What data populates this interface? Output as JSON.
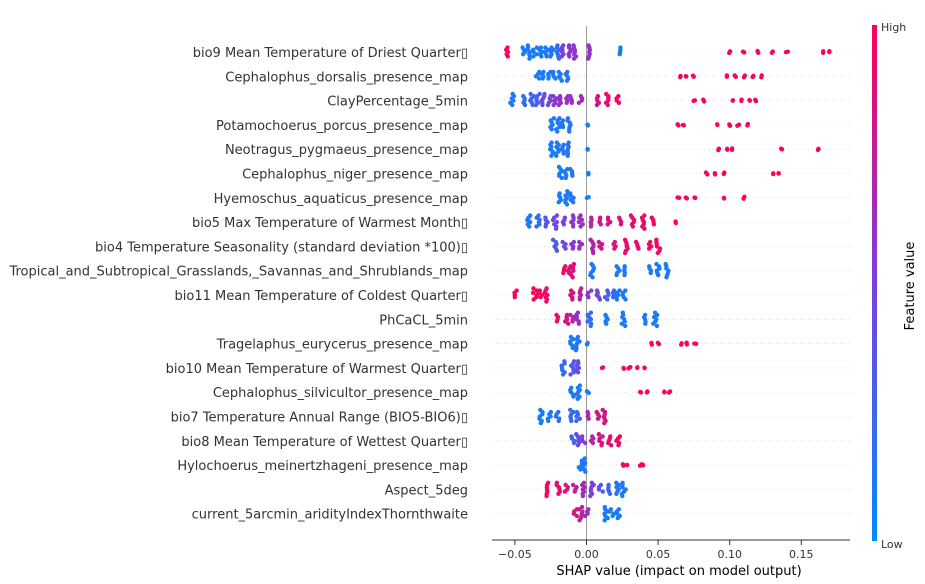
{
  "chart_data": {
    "type": "scatter",
    "subtype": "shap-beeswarm",
    "title": "",
    "xlabel": "SHAP value (impact on model output)",
    "ylabel": "",
    "xlim": [
      -0.066,
      0.184
    ],
    "xticks": [
      {
        "value": -0.05,
        "label": "−0.05"
      },
      {
        "value": 0.0,
        "label": "0.00"
      },
      {
        "value": 0.05,
        "label": "0.05"
      },
      {
        "value": 0.1,
        "label": "0.10"
      },
      {
        "value": 0.15,
        "label": "0.15"
      }
    ],
    "grid": false,
    "colorbar": {
      "title": "Feature value",
      "high_label": "High",
      "low_label": "Low",
      "low_color": "#008bfb",
      "high_color": "#ff0052"
    },
    "features": [
      {
        "name": "bio9 Mean Temperature of Driest Quarter▯",
        "clusters": [
          [
            -0.055,
            1
          ],
          [
            -0.044,
            0.1
          ],
          [
            -0.04,
            0.1
          ],
          [
            -0.036,
            0.1
          ],
          [
            -0.032,
            0.1
          ],
          [
            -0.028,
            0.12
          ],
          [
            -0.024,
            0.15
          ],
          [
            -0.02,
            0.2
          ],
          [
            -0.016,
            0.5
          ],
          [
            -0.012,
            0.6
          ],
          [
            -0.008,
            0.55
          ],
          [
            0.001,
            0.6
          ],
          [
            0.024,
            0.1
          ]
        ],
        "singles": [
          [
            0.1,
            0.95
          ],
          [
            0.11,
            0.95
          ],
          [
            0.12,
            0.95
          ],
          [
            0.13,
            0.95
          ],
          [
            0.14,
            0.95
          ],
          [
            0.165,
            1
          ],
          [
            0.17,
            1
          ]
        ]
      },
      {
        "name": "Cephalophus_dorsalis_presence_map",
        "clusters": [
          [
            -0.034,
            0.1
          ],
          [
            -0.03,
            0.1
          ],
          [
            -0.026,
            0.1
          ],
          [
            -0.022,
            0.12
          ],
          [
            -0.018,
            0.12
          ],
          [
            -0.014,
            0.15
          ]
        ],
        "singles": [
          [
            0.066,
            0.95
          ],
          [
            0.07,
            0.95
          ],
          [
            0.075,
            0.95
          ],
          [
            0.098,
            0.95
          ],
          [
            0.104,
            0.95
          ],
          [
            0.11,
            0.95
          ],
          [
            0.116,
            0.95
          ],
          [
            0.122,
            0.95
          ]
        ]
      },
      {
        "name": "ClayPercentage_5min",
        "clusters": [
          [
            -0.052,
            0.1
          ],
          [
            -0.044,
            0.2
          ],
          [
            -0.038,
            0.25
          ],
          [
            -0.034,
            0.3
          ],
          [
            -0.03,
            0.4
          ],
          [
            -0.026,
            0.45
          ],
          [
            -0.022,
            0.55
          ],
          [
            -0.018,
            0.6
          ],
          [
            -0.014,
            0.6
          ],
          [
            -0.01,
            0.62
          ],
          [
            -0.004,
            0.65
          ],
          [
            0.008,
            0.85
          ],
          [
            0.014,
            0.9
          ],
          [
            0.022,
            0.95
          ]
        ],
        "singles": [
          [
            0.075,
            1
          ],
          [
            0.082,
            1
          ],
          [
            0.102,
            0.95
          ],
          [
            0.108,
            0.95
          ],
          [
            0.114,
            0.95
          ],
          [
            0.118,
            0.95
          ]
        ]
      },
      {
        "name": "Potamochoerus_porcus_presence_map",
        "clusters": [
          [
            -0.024,
            0.1
          ],
          [
            -0.02,
            0.12
          ],
          [
            -0.016,
            0.15
          ],
          [
            -0.012,
            0.15
          ]
        ],
        "singles": [
          [
            0.001,
            0.1
          ],
          [
            0.064,
            0.95
          ],
          [
            0.068,
            0.95
          ],
          [
            0.092,
            0.95
          ],
          [
            0.1,
            0.95
          ],
          [
            0.106,
            0.95
          ],
          [
            0.112,
            0.95
          ]
        ]
      },
      {
        "name": "Neotragus_pygmaeus_presence_map",
        "clusters": [
          [
            -0.024,
            0.1
          ],
          [
            -0.02,
            0.12
          ],
          [
            -0.016,
            0.15
          ],
          [
            -0.012,
            0.15
          ]
        ],
        "singles": [
          [
            0.001,
            0.1
          ],
          [
            0.092,
            0.95
          ],
          [
            0.098,
            0.95
          ],
          [
            0.102,
            0.95
          ],
          [
            0.136,
            1
          ],
          [
            0.162,
            1
          ]
        ]
      },
      {
        "name": "Cephalophus_niger_presence_map",
        "clusters": [
          [
            -0.018,
            0.1
          ],
          [
            -0.014,
            0.12
          ],
          [
            -0.01,
            0.15
          ]
        ],
        "singles": [
          [
            0.001,
            0.1
          ],
          [
            0.084,
            0.95
          ],
          [
            0.09,
            0.95
          ],
          [
            0.096,
            0.95
          ],
          [
            0.13,
            1
          ],
          [
            0.134,
            1
          ]
        ]
      },
      {
        "name": "Hyemoschus_aquaticus_presence_map",
        "clusters": [
          [
            -0.018,
            0.1
          ],
          [
            -0.014,
            0.12
          ],
          [
            -0.01,
            0.15
          ]
        ],
        "singles": [
          [
            0.001,
            0.1
          ],
          [
            0.064,
            0.95
          ],
          [
            0.07,
            0.95
          ],
          [
            0.076,
            0.95
          ],
          [
            0.096,
            0.95
          ],
          [
            0.11,
            1
          ]
        ]
      },
      {
        "name": "bio5 Max Temperature of Warmest Month▯",
        "clusters": [
          [
            -0.04,
            0.1
          ],
          [
            -0.034,
            0.2
          ],
          [
            -0.028,
            0.35
          ],
          [
            -0.022,
            0.45
          ],
          [
            -0.016,
            0.5
          ],
          [
            -0.01,
            0.55
          ],
          [
            -0.004,
            0.62
          ],
          [
            0.004,
            0.7
          ],
          [
            0.01,
            0.78
          ],
          [
            0.016,
            0.82
          ],
          [
            0.024,
            0.85
          ],
          [
            0.032,
            0.9
          ],
          [
            0.04,
            0.92
          ],
          [
            0.046,
            0.95
          ]
        ],
        "singles": [
          [
            0.062,
            1
          ]
        ]
      },
      {
        "name": "bio4 Temperature Seasonality (standard deviation *100)▯",
        "clusters": [
          [
            -0.022,
            0.3
          ],
          [
            -0.016,
            0.45
          ],
          [
            -0.01,
            0.55
          ],
          [
            -0.004,
            0.62
          ],
          [
            0.004,
            0.7
          ],
          [
            0.01,
            0.8
          ],
          [
            0.02,
            0.85
          ],
          [
            0.028,
            0.9
          ],
          [
            0.036,
            0.9
          ],
          [
            0.044,
            0.92
          ],
          [
            0.05,
            0.95
          ]
        ],
        "singles": []
      },
      {
        "name": "Tropical_and_Subtropical_Grasslands,_Savannas_and_Shrublands_map",
        "clusters": [
          [
            -0.016,
            0.95
          ],
          [
            -0.012,
            0.9
          ],
          [
            -0.01,
            0.85
          ],
          [
            0.004,
            0.1
          ],
          [
            0.022,
            0.1
          ],
          [
            0.026,
            0.12
          ],
          [
            0.044,
            0.1
          ],
          [
            0.05,
            0.1
          ],
          [
            0.056,
            0.1
          ]
        ],
        "singles": []
      },
      {
        "name": "bio11 Mean Temperature of Coldest Quarter▯",
        "clusters": [
          [
            -0.05,
            0.95
          ],
          [
            -0.036,
            1
          ],
          [
            -0.032,
            0.95
          ],
          [
            -0.028,
            0.92
          ],
          [
            -0.01,
            0.85
          ],
          [
            -0.004,
            0.75
          ],
          [
            0.002,
            0.55
          ],
          [
            0.008,
            0.42
          ],
          [
            0.014,
            0.3
          ],
          [
            0.018,
            0.2
          ],
          [
            0.022,
            0.12
          ],
          [
            0.026,
            0.1
          ]
        ],
        "singles": []
      },
      {
        "name": "PhCaCL_5min",
        "clusters": [
          [
            -0.02,
            0.9
          ],
          [
            -0.014,
            0.85
          ],
          [
            -0.01,
            0.7
          ],
          [
            -0.006,
            0.6
          ],
          [
            0.002,
            0.2
          ],
          [
            0.014,
            0.1
          ],
          [
            0.026,
            0.12
          ],
          [
            0.04,
            0.1
          ],
          [
            0.048,
            0.1
          ]
        ],
        "singles": []
      },
      {
        "name": "Tragelaphus_eurycerus_presence_map",
        "clusters": [
          [
            -0.01,
            0.1
          ],
          [
            -0.006,
            0.15
          ]
        ],
        "singles": [
          [
            0.001,
            0.1
          ],
          [
            0.046,
            0.95
          ],
          [
            0.05,
            0.95
          ],
          [
            0.066,
            0.95
          ],
          [
            0.07,
            0.95
          ],
          [
            0.076,
            1
          ]
        ]
      },
      {
        "name": "bio10 Mean Temperature of Warmest Quarter▯",
        "clusters": [
          [
            -0.016,
            0.2
          ],
          [
            -0.01,
            0.35
          ],
          [
            -0.006,
            0.4
          ]
        ],
        "singles": [
          [
            0.011,
            0.9
          ],
          [
            0.026,
            0.95
          ],
          [
            0.03,
            0.95
          ],
          [
            0.036,
            0.95
          ],
          [
            0.04,
            0.95
          ]
        ]
      },
      {
        "name": "Cephalophus_silvicultor_presence_map",
        "clusters": [
          [
            -0.01,
            0.1
          ],
          [
            -0.006,
            0.12
          ]
        ],
        "singles": [
          [
            0.001,
            0.1
          ],
          [
            0.038,
            0.95
          ],
          [
            0.042,
            0.95
          ],
          [
            0.054,
            0.95
          ],
          [
            0.058,
            0.95
          ]
        ]
      },
      {
        "name": "bio7 Temperature Annual Range (BIO5-BIO6)▯",
        "clusters": [
          [
            -0.032,
            0.1
          ],
          [
            -0.026,
            0.12
          ],
          [
            -0.02,
            0.15
          ],
          [
            -0.01,
            0.2
          ],
          [
            -0.006,
            0.25
          ],
          [
            0.002,
            0.7
          ],
          [
            0.008,
            0.8
          ],
          [
            0.012,
            0.85
          ]
        ],
        "singles": []
      },
      {
        "name": "bio8 Mean Temperature of Wettest Quarter▯",
        "clusters": [
          [
            -0.01,
            0.25
          ],
          [
            -0.006,
            0.4
          ],
          [
            -0.002,
            0.55
          ],
          [
            0.004,
            0.7
          ],
          [
            0.01,
            0.85
          ],
          [
            0.016,
            0.9
          ],
          [
            0.022,
            0.95
          ]
        ],
        "singles": []
      },
      {
        "name": "Hylochoerus_meinertzhageni_presence_map",
        "clusters": [
          [
            -0.004,
            0.1
          ],
          [
            -0.002,
            0.12
          ]
        ],
        "singles": [
          [
            0.026,
            0.95
          ],
          [
            0.028,
            0.95
          ],
          [
            0.038,
            0.95
          ],
          [
            0.04,
            0.95
          ]
        ]
      },
      {
        "name": "Aspect_5deg",
        "clusters": [
          [
            -0.028,
            0.95
          ],
          [
            -0.02,
            0.9
          ],
          [
            -0.014,
            0.85
          ],
          [
            -0.008,
            0.75
          ],
          [
            -0.002,
            0.65
          ],
          [
            0.004,
            0.5
          ],
          [
            0.01,
            0.35
          ],
          [
            0.016,
            0.25
          ],
          [
            0.022,
            0.15
          ],
          [
            0.026,
            0.1
          ]
        ],
        "singles": []
      },
      {
        "name": "current_5arcmin_aridityIndexThornthwaite",
        "clusters": [
          [
            -0.008,
            0.85
          ],
          [
            -0.004,
            0.75
          ],
          [
            0.0,
            0.6
          ],
          [
            0.014,
            0.1
          ],
          [
            0.018,
            0.1
          ],
          [
            0.022,
            0.12
          ]
        ],
        "singles": []
      }
    ]
  }
}
